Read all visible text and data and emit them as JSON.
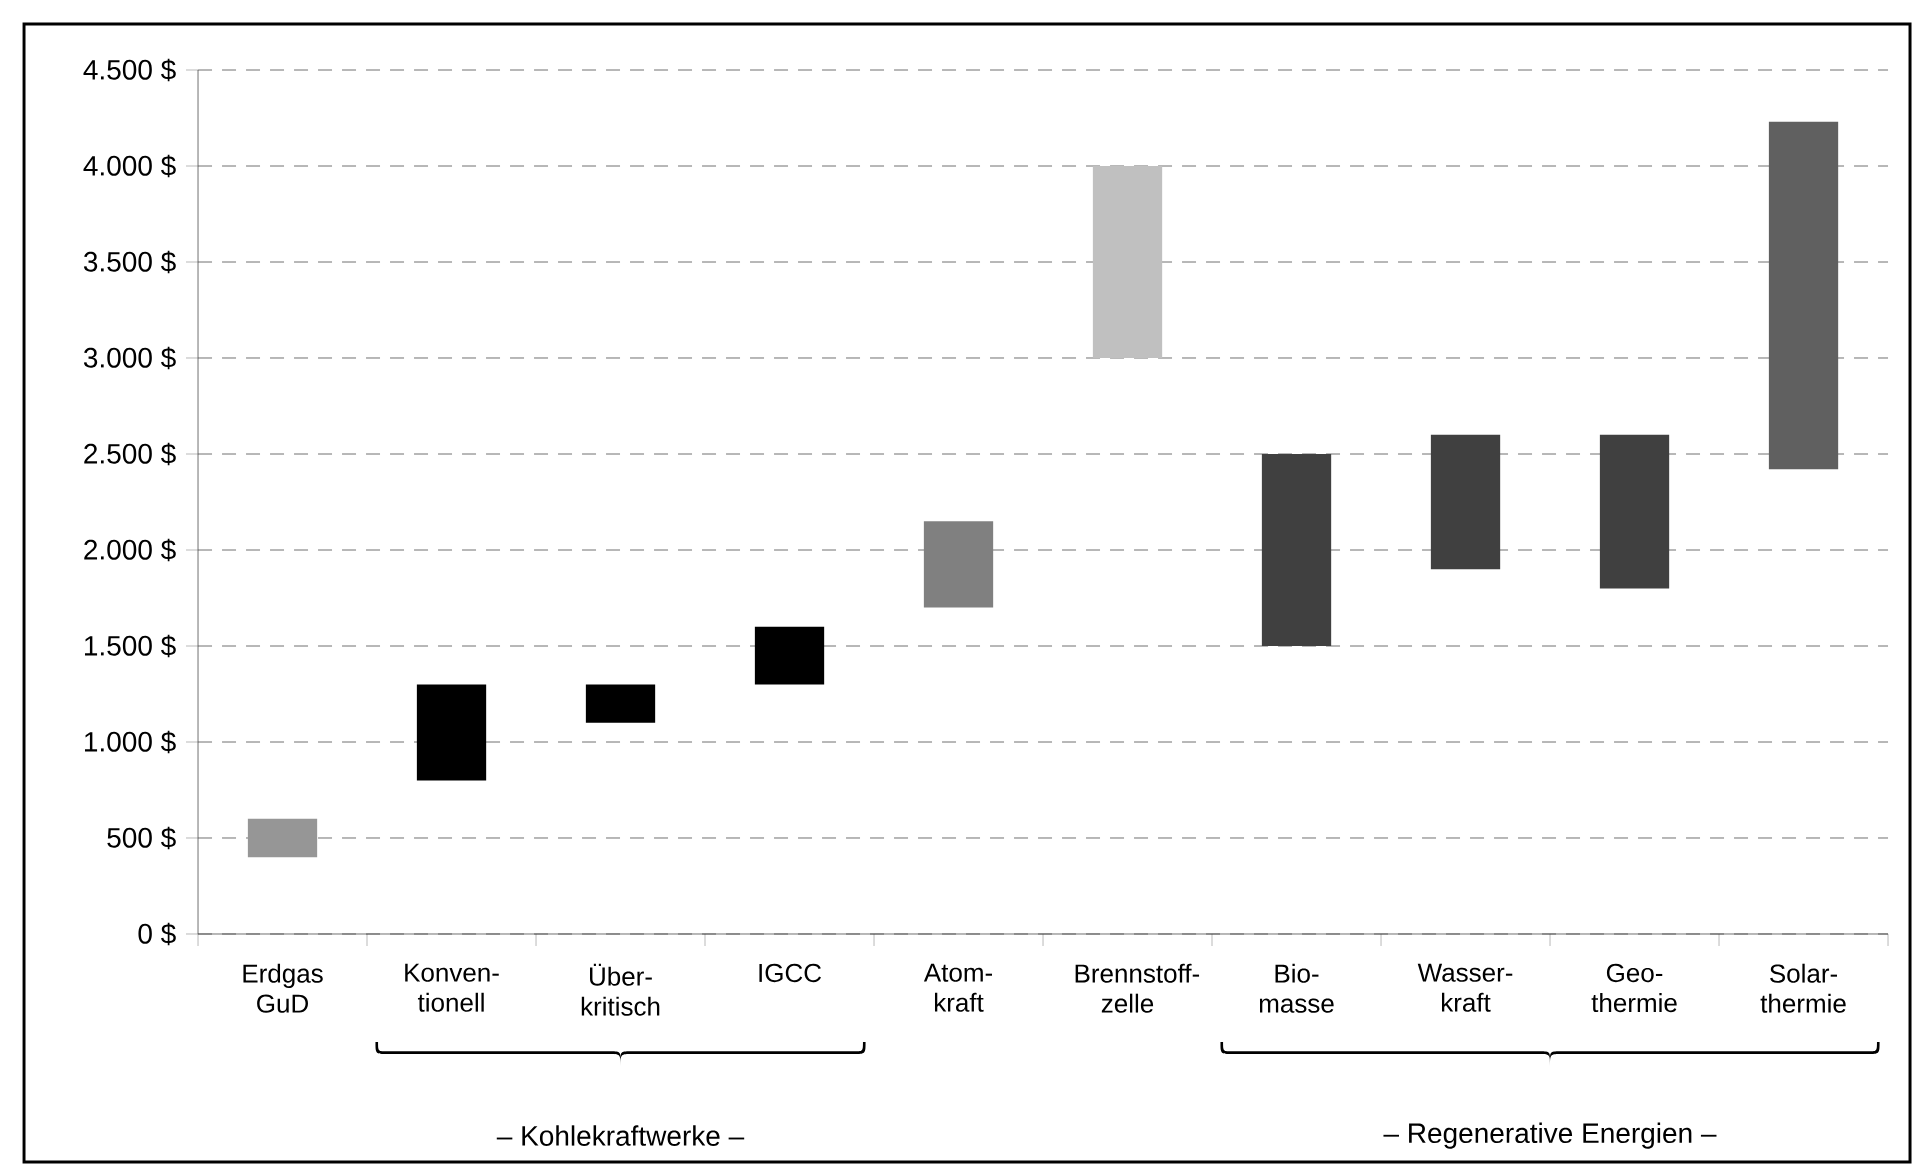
{
  "chart_data": {
    "type": "bar",
    "categories": [
      "Erdgas GuD",
      "Konven-tionell",
      "Über-kritisch",
      "IGCC",
      "Atom-kraft",
      "Brennstoff-zelle",
      "Bio-masse",
      "Wasser-kraft",
      "Geo-thermie",
      "Solar-thermie"
    ],
    "base": [
      400,
      800,
      1100,
      1300,
      1700,
      3000,
      1500,
      1900,
      1800,
      2420
    ],
    "values": [
      200,
      500,
      200,
      300,
      450,
      1000,
      1000,
      700,
      800,
      1810
    ],
    "colors": [
      "#969696",
      "#000000",
      "#000000",
      "#000000",
      "#808080",
      "#c0c0c0",
      "#404040",
      "#404040",
      "#404040",
      "#606060"
    ],
    "ylim": [
      0,
      4500
    ],
    "yticks": [
      {
        "value": 0,
        "label": "0 $"
      },
      {
        "value": 500,
        "label": "500 $"
      },
      {
        "value": 1000,
        "label": "1.000 $"
      },
      {
        "value": 1500,
        "label": "1.500 $"
      },
      {
        "value": 2000,
        "label": "2.000 $"
      },
      {
        "value": 2500,
        "label": "2.500 $"
      },
      {
        "value": 3000,
        "label": "3.000 $"
      },
      {
        "value": 3500,
        "label": "3.500 $"
      },
      {
        "value": 4000,
        "label": "4.000 $"
      },
      {
        "value": 4500,
        "label": "4.500 $"
      }
    ],
    "grid": "y",
    "line_style": "dashed",
    "annotations": [
      "– Kohlekraftwerke –",
      "– Regenerative Energien –"
    ]
  }
}
